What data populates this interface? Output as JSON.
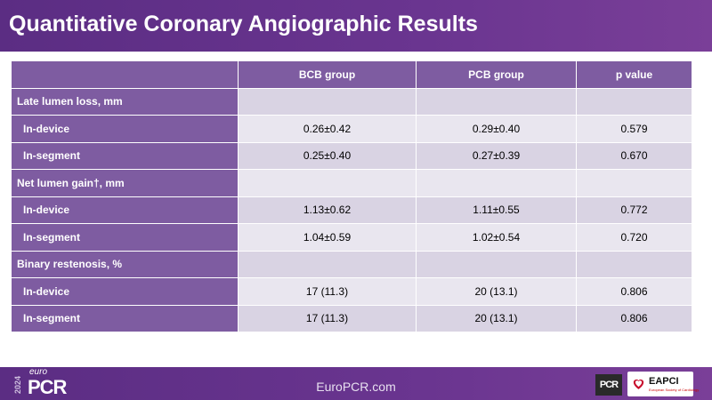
{
  "title": "Quantitative Coronary Angiographic Results",
  "table": {
    "headers": [
      "",
      "BCB group",
      "PCB group",
      "p value"
    ],
    "sections": [
      {
        "label": "Late lumen loss, mm",
        "rows": [
          {
            "label": "In-device",
            "bcb": "0.26±0.42",
            "pcb": "0.29±0.40",
            "p": "0.579"
          },
          {
            "label": "In-segment",
            "bcb": "0.25±0.40",
            "pcb": "0.27±0.39",
            "p": "0.670"
          }
        ]
      },
      {
        "label": "Net lumen gain†, mm",
        "rows": [
          {
            "label": "In-device",
            "bcb": "1.13±0.62",
            "pcb": "1.11±0.55",
            "p": "0.772"
          },
          {
            "label": "In-segment",
            "bcb": "1.04±0.59",
            "pcb": "1.02±0.54",
            "p": "0.720"
          }
        ]
      },
      {
        "label": "Binary restenosis, %",
        "rows": [
          {
            "label": "In-device",
            "bcb": "17 (11.3)",
            "pcb": "20 (13.1)",
            "p": "0.806"
          },
          {
            "label": "In-segment",
            "bcb": "17 (11.3)",
            "pcb": "20 (13.1)",
            "p": "0.806"
          }
        ]
      }
    ]
  },
  "footer": {
    "logo_year": "2024",
    "logo_euro": "euro",
    "logo_pcr": "PCR",
    "site": "EuroPCR.com",
    "pcr_badge": "PCR",
    "eapci_label": "EAPCI",
    "eapci_sub": "European Society of Cardiology"
  },
  "colors": {
    "brand_purple": "#5b2d83",
    "header_cell": "#7e5ca1",
    "row_light": "#e9e6ef",
    "row_dark": "#d9d3e3"
  }
}
